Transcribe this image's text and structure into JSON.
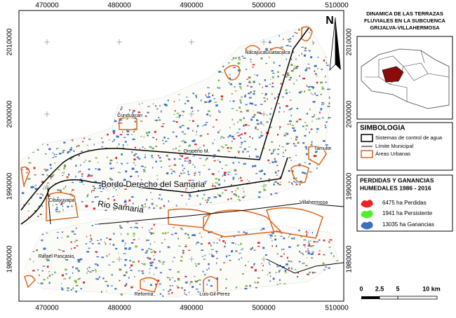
{
  "title_lines": [
    "DINAMICA DE LAS TERRAZAS",
    "FLUVIALES EN LA SUBCUENCA",
    "GRIJALVA-VILLAHERMOSA"
  ],
  "map": {
    "x_labels_top": [
      "470000",
      "480000",
      "490000",
      "500000",
      "510000"
    ],
    "x_labels_bottom": [
      "470000",
      "480000",
      "490000",
      "500000",
      "510000"
    ],
    "y_labels_left": [
      "2010000",
      "2000000",
      "1990000",
      "1980000"
    ],
    "y_labels_right": [
      "2010000",
      "2000000",
      "1990000",
      "1980000"
    ],
    "north": "N",
    "places": [
      "Nacajuca",
      "Guatacalca",
      "Cunduacan",
      "Oropeño M.",
      "Tamulte",
      "Villahermosa",
      "Bordo Derecho del Samaria",
      "Rio Samaria",
      "Cibayuyapa",
      "Rafael Pascasio",
      "Reforma",
      "Luis Gil Perez"
    ]
  },
  "symbology": {
    "title": "SIMBOLOGIA",
    "items": [
      "Sistemas de control de agua",
      "Límite Municipal",
      "Áreas Urbanas"
    ]
  },
  "wetlands": {
    "title_lines": [
      "PERDIDAS Y GANANCIAS",
      "HUMEDALES 1986 - 2016"
    ],
    "items": [
      "6475 ha Perdidas",
      "1941 ha Persistente",
      "13035 ha Ganancias"
    ]
  },
  "scale": {
    "labels": [
      "0",
      "2.5",
      "5",
      "10 km"
    ]
  }
}
